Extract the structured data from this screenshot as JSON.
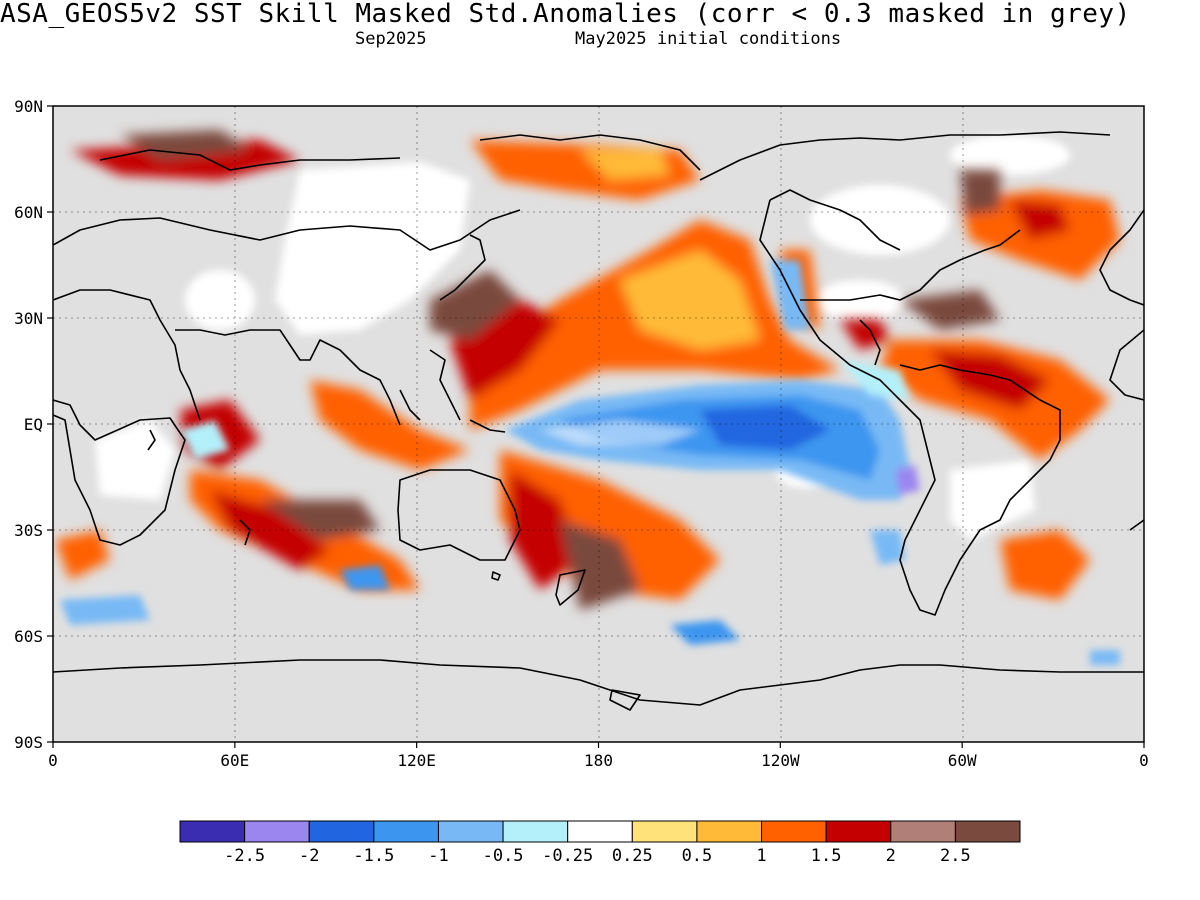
{
  "title": "ASA_GEOS5v2  SST Skill Masked Std.Anomalies (corr < 0.3 masked in grey)",
  "subtitle_left": "Sep2025",
  "subtitle_right": "May2025 initial conditions",
  "chart_data": {
    "type": "heatmap",
    "projection": "equirectangular",
    "mask_color": "#e0e0e0",
    "lat_ticks": [
      "90N",
      "60N",
      "30N",
      "EQ",
      "30S",
      "60S",
      "90S"
    ],
    "lon_ticks": [
      "0",
      "60E",
      "120E",
      "180",
      "120W",
      "60W",
      "0"
    ],
    "colorbar": {
      "colors": [
        "#3b2db2",
        "#9b86f0",
        "#2166e0",
        "#3c96f0",
        "#78b9f5",
        "#b4f0fa",
        "#ffffff",
        "#ffe27a",
        "#ffbb37",
        "#ff6000",
        "#c40000",
        "#b08078",
        "#7a4a3e"
      ],
      "labels": [
        "-2.5",
        "-2",
        "-1.5",
        "-1",
        "-0.5",
        "-0.25",
        "0.25",
        "0.5",
        "1",
        "1.5",
        "2",
        "2.5"
      ]
    }
  }
}
